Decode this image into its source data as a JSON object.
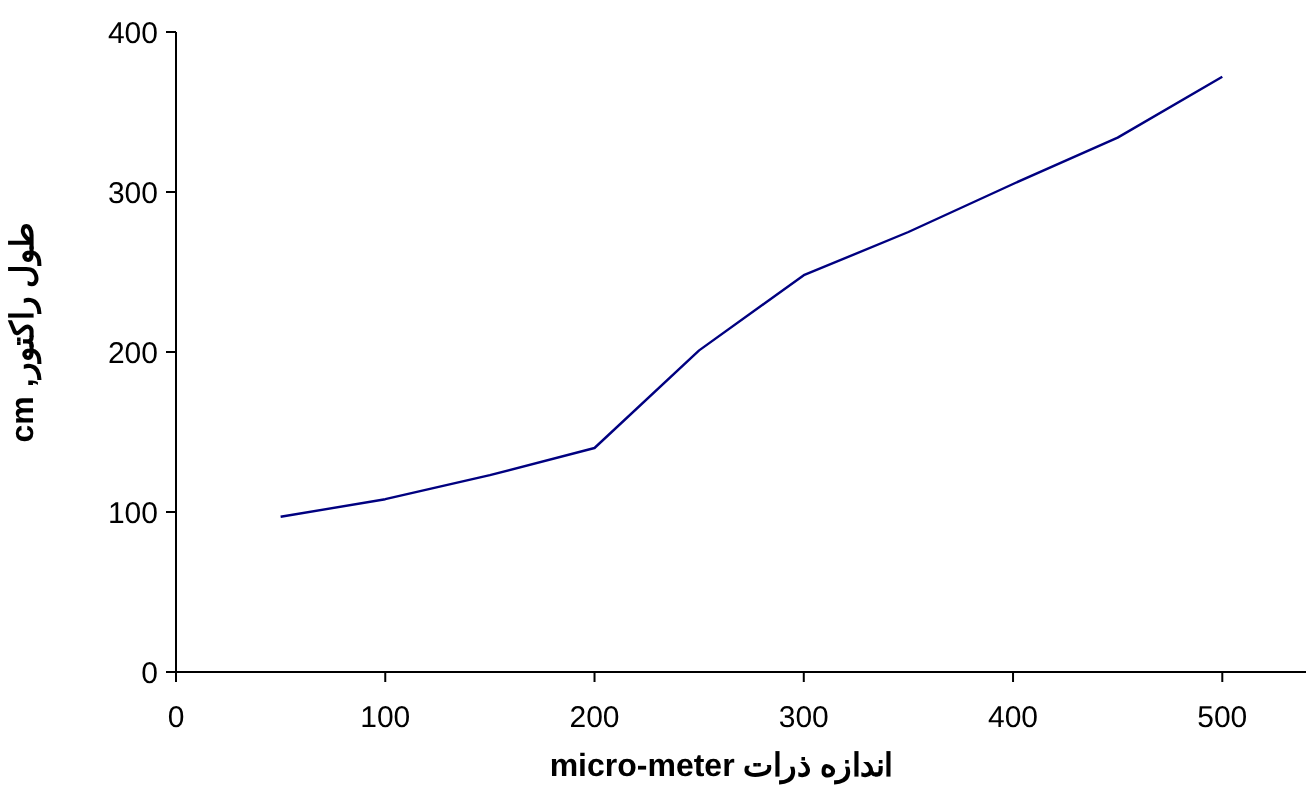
{
  "chart_data": {
    "type": "line",
    "xlabel": "اندازه ذرات micro-meter",
    "ylabel": "طول راکتور, cm",
    "x": [
      50,
      100,
      150,
      200,
      250,
      300,
      350,
      400,
      450,
      500
    ],
    "series": [
      {
        "color": "#000080",
        "values": [
          97,
          108,
          123,
          140,
          201,
          248,
          275,
          305,
          334,
          372
        ]
      }
    ],
    "xlim": [
      0,
      540
    ],
    "xticks": [
      0,
      100,
      200,
      300,
      400,
      500
    ],
    "ylim": [
      0,
      400
    ],
    "yticks": [
      0,
      100,
      200,
      300,
      400
    ],
    "grid": false,
    "legend": false,
    "marker": "none",
    "line_style": "solid"
  }
}
